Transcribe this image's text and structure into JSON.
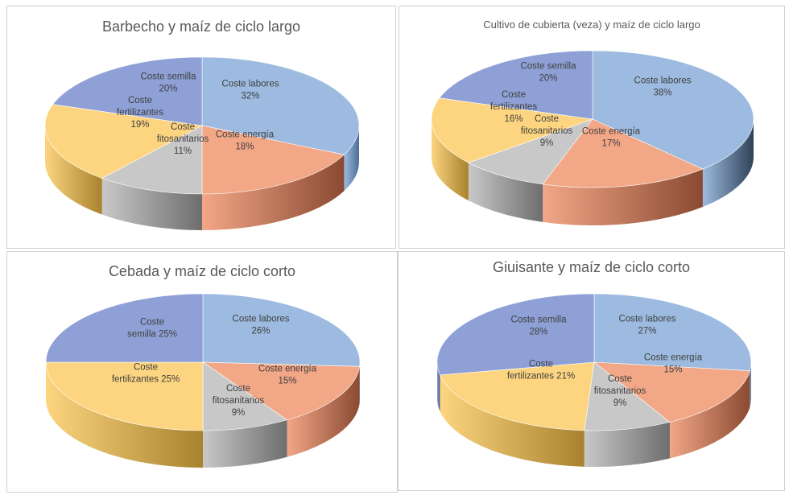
{
  "chart_data": [
    {
      "type": "pie",
      "title": "Barbecho  y maíz de ciclo largo",
      "slices": [
        {
          "name": "Coste labores",
          "value": 32,
          "label_lines": [
            "Coste labores",
            "32%"
          ],
          "color": "#9dbbe0",
          "color_dark": "#4d6e96"
        },
        {
          "name": "Coste energía",
          "value": 18,
          "label_lines": [
            "Coste energía",
            "18%"
          ],
          "color": "#f2a787",
          "color_dark": "#8a4a32"
        },
        {
          "name": "Coste fitosanitarios",
          "value": 11,
          "label_lines": [
            "Coste",
            "fitosanitarios",
            "11%"
          ],
          "color": "#c8c8c8",
          "color_dark": "#6e6e6e"
        },
        {
          "name": "Coste fertilizantes",
          "value": 19,
          "label_lines": [
            "Coste",
            "fertilizantes",
            "19%"
          ],
          "color": "#fdd580",
          "color_dark": "#a8822e"
        },
        {
          "name": "Coste semilla",
          "value": 20,
          "label_lines": [
            "Coste semilla",
            "20%"
          ],
          "color": "#8ea0d6",
          "color_dark": "#46558a"
        }
      ]
    },
    {
      "type": "pie",
      "title": "Cultivo de cubierta (veza) y maíz de ciclo largo",
      "slices": [
        {
          "name": "Coste labores",
          "value": 38,
          "label_lines": [
            "Coste labores",
            "38%"
          ],
          "color": "#9dbbe0",
          "color_dark": "#2f4257"
        },
        {
          "name": "Coste energía",
          "value": 17,
          "label_lines": [
            "Coste energía",
            "17%"
          ],
          "color": "#f2a787",
          "color_dark": "#8a4a32"
        },
        {
          "name": "Coste fitosanitarios",
          "value": 9,
          "label_lines": [
            "Coste",
            "fitosanitarios",
            "9%"
          ],
          "color": "#c8c8c8",
          "color_dark": "#6e6e6e"
        },
        {
          "name": "Coste fertilizantes",
          "value": 16,
          "label_lines": [
            "Coste",
            "fertilizantes",
            "16%"
          ],
          "color": "#fdd580",
          "color_dark": "#a8822e"
        },
        {
          "name": "Coste semilla",
          "value": 20,
          "label_lines": [
            "Coste semilla",
            "20%"
          ],
          "color": "#8ea0d6",
          "color_dark": "#46558a"
        }
      ]
    },
    {
      "type": "pie",
      "title": "Cebada  y maíz de ciclo corto",
      "slices": [
        {
          "name": "Coste labores",
          "value": 26,
          "label_lines": [
            "Coste labores",
            "26%"
          ],
          "color": "#9dbbe0",
          "color_dark": "#4d6e96"
        },
        {
          "name": "Coste energía",
          "value": 15,
          "label_lines": [
            "Coste energía",
            "15%"
          ],
          "color": "#f2a787",
          "color_dark": "#8a4a32"
        },
        {
          "name": "Coste fitosanitarios",
          "value": 9,
          "label_lines": [
            "Coste",
            "fitosanitarios",
            "9%"
          ],
          "color": "#c8c8c8",
          "color_dark": "#6e6e6e"
        },
        {
          "name": "Coste fertilizantes",
          "value": 25,
          "label_lines": [
            "Coste",
            "fertilizantes 25%"
          ],
          "color": "#fdd580",
          "color_dark": "#a8822e"
        },
        {
          "name": "Coste semilla",
          "value": 25,
          "label_lines": [
            "Coste",
            "semilla 25%"
          ],
          "color": "#8ea0d6",
          "color_dark": "#46558a"
        }
      ]
    },
    {
      "type": "pie",
      "title": "Giuisante  y maíz de ciclo corto",
      "slices": [
        {
          "name": "Coste labores",
          "value": 27,
          "label_lines": [
            "Coste labores",
            "27%"
          ],
          "color": "#9dbbe0",
          "color_dark": "#4d6e96"
        },
        {
          "name": "Coste energía",
          "value": 15,
          "label_lines": [
            "Coste energía",
            "15%"
          ],
          "color": "#f2a787",
          "color_dark": "#8a4a32"
        },
        {
          "name": "Coste fitosanitarios",
          "value": 9,
          "label_lines": [
            "Coste",
            "fitosanitarios",
            "9%"
          ],
          "color": "#c8c8c8",
          "color_dark": "#6e6e6e"
        },
        {
          "name": "Coste fertilizantes",
          "value": 21,
          "label_lines": [
            "Coste",
            "fertilizantes 21%"
          ],
          "color": "#fdd580",
          "color_dark": "#a8822e"
        },
        {
          "name": "Coste semilla",
          "value": 28,
          "label_lines": [
            "Coste semilla",
            "28%"
          ],
          "color": "#8ea0d6",
          "color_dark": "#46558a"
        }
      ]
    }
  ]
}
